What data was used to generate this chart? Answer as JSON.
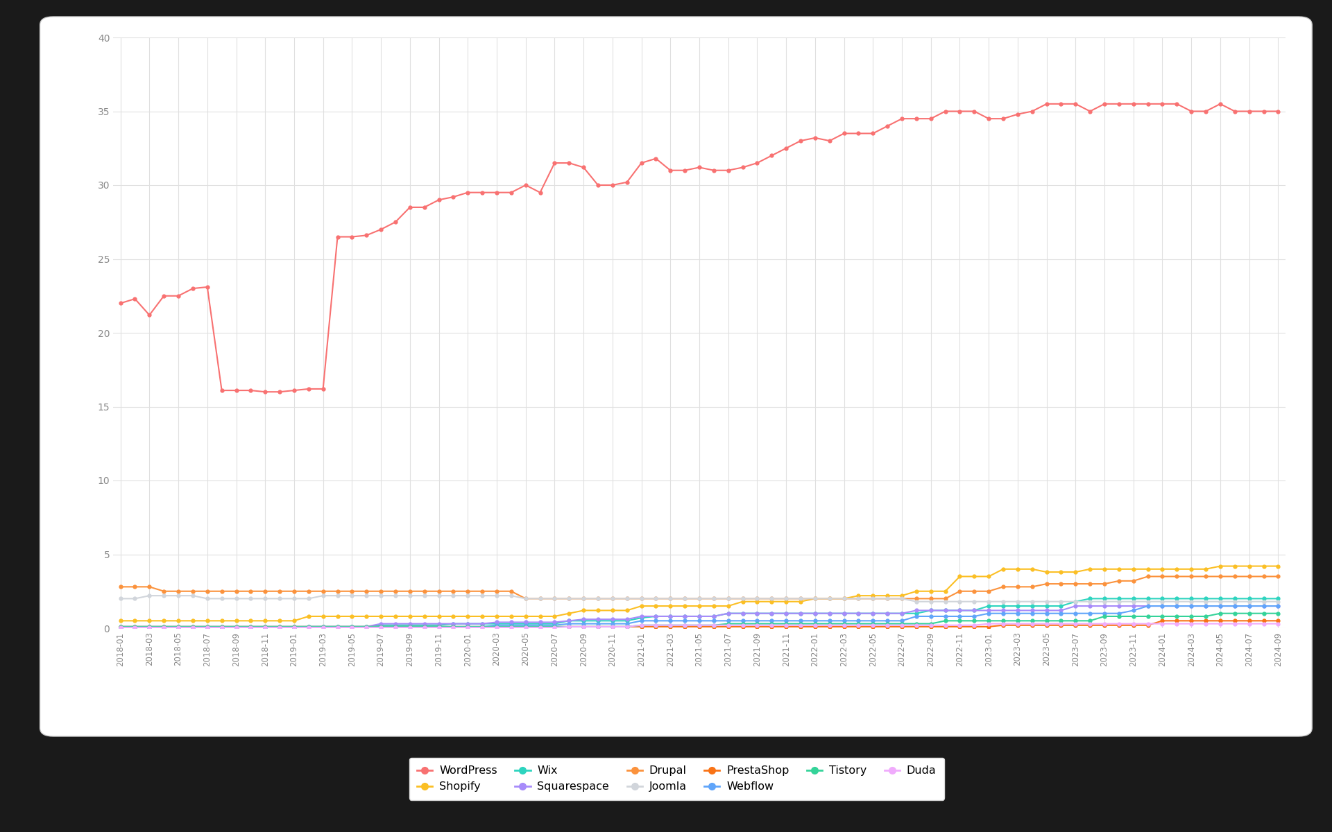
{
  "background_outer": "#1a1a1a",
  "background_card": "#ffffff",
  "background_chart": "#ffffff",
  "grid_color": "#e0e0e0",
  "ylim": [
    0,
    40
  ],
  "yticks": [
    0,
    5,
    10,
    15,
    20,
    25,
    30,
    35,
    40
  ],
  "tick_color": "#888888",
  "tick_fontsize": 10,
  "series": {
    "WordPress": {
      "color": "#f87171"
    },
    "Shopify": {
      "color": "#fbbf24"
    },
    "Wix": {
      "color": "#2dd4bf"
    },
    "Squarespace": {
      "color": "#a78bfa"
    },
    "Drupal": {
      "color": "#fb923c"
    },
    "Joomla": {
      "color": "#d1d5db"
    },
    "PrestaShop": {
      "color": "#f97316"
    },
    "Webflow": {
      "color": "#60a5fa"
    },
    "Tistory": {
      "color": "#34d399"
    },
    "Duda": {
      "color": "#f0abfc"
    }
  },
  "values": {
    "WordPress": [
      22.0,
      22.3,
      21.2,
      22.5,
      22.5,
      23.0,
      23.1,
      16.1,
      16.1,
      16.1,
      16.0,
      16.0,
      16.1,
      16.2,
      16.2,
      26.5,
      26.5,
      26.6,
      27.0,
      27.5,
      28.5,
      28.5,
      29.0,
      29.2,
      29.5,
      29.5,
      29.5,
      29.5,
      30.0,
      29.5,
      31.5,
      31.5,
      31.2,
      30.0,
      30.0,
      30.2,
      31.5,
      31.8,
      31.0,
      31.0,
      31.2,
      31.0,
      31.0,
      31.2,
      31.5,
      32.0,
      32.5,
      33.0,
      33.2,
      33.0,
      33.5,
      33.5,
      33.5,
      34.0,
      34.5,
      34.5,
      34.5,
      35.0,
      35.0,
      35.0,
      34.5,
      34.5,
      34.8,
      35.0,
      35.5,
      35.5,
      35.5,
      35.0,
      35.5,
      35.5,
      35.5,
      35.5,
      35.5,
      35.5,
      35.0,
      35.0,
      35.5,
      35.0
    ],
    "Shopify": [
      0.5,
      0.5,
      0.5,
      0.5,
      0.5,
      0.5,
      0.5,
      0.5,
      0.5,
      0.5,
      0.5,
      0.5,
      0.5,
      0.8,
      0.8,
      0.8,
      0.8,
      0.8,
      0.8,
      0.8,
      0.8,
      0.8,
      0.8,
      0.8,
      0.8,
      0.8,
      0.8,
      0.8,
      0.8,
      0.8,
      0.8,
      1.0,
      1.2,
      1.2,
      1.2,
      1.2,
      1.5,
      1.5,
      1.5,
      1.5,
      1.5,
      1.5,
      1.5,
      1.8,
      1.8,
      1.8,
      1.8,
      1.8,
      2.0,
      2.0,
      2.0,
      2.2,
      2.2,
      2.2,
      2.2,
      2.5,
      2.5,
      2.5,
      3.5,
      3.5,
      3.5,
      4.0,
      4.0,
      4.0,
      3.8,
      3.8,
      3.8,
      4.0,
      4.0,
      4.0,
      4.0,
      4.0,
      4.0,
      4.0,
      4.0,
      4.0,
      4.2,
      4.2
    ],
    "Wix": [
      0.1,
      0.1,
      0.1,
      0.1,
      0.1,
      0.1,
      0.1,
      0.1,
      0.1,
      0.1,
      0.1,
      0.1,
      0.1,
      0.1,
      0.1,
      0.1,
      0.1,
      0.1,
      0.2,
      0.2,
      0.2,
      0.2,
      0.2,
      0.3,
      0.3,
      0.3,
      0.3,
      0.3,
      0.3,
      0.3,
      0.3,
      0.5,
      0.5,
      0.5,
      0.5,
      0.5,
      0.7,
      0.8,
      0.8,
      0.8,
      0.8,
      0.8,
      1.0,
      1.0,
      1.0,
      1.0,
      1.0,
      1.0,
      1.0,
      1.0,
      1.0,
      1.0,
      1.0,
      1.0,
      1.0,
      1.0,
      1.2,
      1.2,
      1.2,
      1.2,
      1.5,
      1.5,
      1.5,
      1.5,
      1.5,
      1.5,
      1.8,
      2.0,
      2.0,
      2.0,
      2.0,
      2.0,
      2.0,
      2.0,
      2.0,
      2.0,
      2.0,
      2.0
    ],
    "Squarespace": [
      0.1,
      0.1,
      0.1,
      0.1,
      0.1,
      0.1,
      0.1,
      0.1,
      0.1,
      0.1,
      0.1,
      0.1,
      0.1,
      0.1,
      0.1,
      0.1,
      0.1,
      0.1,
      0.3,
      0.3,
      0.3,
      0.3,
      0.3,
      0.3,
      0.3,
      0.3,
      0.4,
      0.4,
      0.4,
      0.4,
      0.4,
      0.5,
      0.6,
      0.6,
      0.6,
      0.6,
      0.8,
      0.8,
      0.8,
      0.8,
      0.8,
      0.8,
      1.0,
      1.0,
      1.0,
      1.0,
      1.0,
      1.0,
      1.0,
      1.0,
      1.0,
      1.0,
      1.0,
      1.0,
      1.0,
      1.2,
      1.2,
      1.2,
      1.2,
      1.2,
      1.2,
      1.2,
      1.2,
      1.2,
      1.2,
      1.2,
      1.5,
      1.5,
      1.5,
      1.5,
      1.5,
      1.5,
      1.5,
      1.5,
      1.5,
      1.5,
      1.5,
      1.5
    ],
    "Drupal": [
      2.8,
      2.8,
      2.8,
      2.5,
      2.5,
      2.5,
      2.5,
      2.5,
      2.5,
      2.5,
      2.5,
      2.5,
      2.5,
      2.5,
      2.5,
      2.5,
      2.5,
      2.5,
      2.5,
      2.5,
      2.5,
      2.5,
      2.5,
      2.5,
      2.5,
      2.5,
      2.5,
      2.5,
      2.0,
      2.0,
      2.0,
      2.0,
      2.0,
      2.0,
      2.0,
      2.0,
      2.0,
      2.0,
      2.0,
      2.0,
      2.0,
      2.0,
      2.0,
      2.0,
      2.0,
      2.0,
      2.0,
      2.0,
      2.0,
      2.0,
      2.0,
      2.0,
      2.0,
      2.0,
      2.0,
      2.0,
      2.0,
      2.0,
      2.5,
      2.5,
      2.5,
      2.8,
      2.8,
      2.8,
      3.0,
      3.0,
      3.0,
      3.0,
      3.0,
      3.2,
      3.2,
      3.5,
      3.5,
      3.5,
      3.5,
      3.5,
      3.5,
      3.5
    ],
    "Joomla": [
      2.0,
      2.0,
      2.2,
      2.2,
      2.2,
      2.2,
      2.0,
      2.0,
      2.0,
      2.0,
      2.0,
      2.0,
      2.0,
      2.0,
      2.2,
      2.2,
      2.2,
      2.2,
      2.2,
      2.2,
      2.2,
      2.2,
      2.2,
      2.2,
      2.2,
      2.2,
      2.2,
      2.2,
      2.0,
      2.0,
      2.0,
      2.0,
      2.0,
      2.0,
      2.0,
      2.0,
      2.0,
      2.0,
      2.0,
      2.0,
      2.0,
      2.0,
      2.0,
      2.0,
      2.0,
      2.0,
      2.0,
      2.0,
      2.0,
      2.0,
      2.0,
      2.0,
      2.0,
      2.0,
      2.0,
      1.8,
      1.8,
      1.8,
      1.8,
      1.8,
      1.8,
      1.8,
      1.8,
      1.8,
      1.8,
      1.8,
      1.8,
      1.8,
      1.8,
      1.8,
      1.8,
      1.8,
      1.8,
      1.8,
      1.8,
      1.8,
      1.8,
      1.8
    ],
    "PrestaShop": [
      0.1,
      0.1,
      0.1,
      0.1,
      0.1,
      0.1,
      0.1,
      0.1,
      0.1,
      0.1,
      0.1,
      0.1,
      0.1,
      0.1,
      0.1,
      0.1,
      0.1,
      0.1,
      0.1,
      0.1,
      0.1,
      0.1,
      0.1,
      0.1,
      0.1,
      0.1,
      0.1,
      0.1,
      0.1,
      0.1,
      0.1,
      0.1,
      0.1,
      0.1,
      0.1,
      0.1,
      0.1,
      0.1,
      0.1,
      0.1,
      0.1,
      0.1,
      0.1,
      0.1,
      0.1,
      0.1,
      0.1,
      0.1,
      0.1,
      0.1,
      0.1,
      0.1,
      0.1,
      0.1,
      0.1,
      0.1,
      0.1,
      0.1,
      0.1,
      0.1,
      0.1,
      0.2,
      0.2,
      0.2,
      0.2,
      0.2,
      0.2,
      0.2,
      0.2,
      0.2,
      0.2,
      0.2,
      0.5,
      0.5,
      0.5,
      0.5,
      0.5,
      0.5
    ],
    "Webflow": [
      0.05,
      0.05,
      0.05,
      0.05,
      0.05,
      0.05,
      0.05,
      0.05,
      0.05,
      0.05,
      0.05,
      0.05,
      0.05,
      0.1,
      0.1,
      0.1,
      0.1,
      0.1,
      0.1,
      0.1,
      0.1,
      0.1,
      0.1,
      0.1,
      0.1,
      0.1,
      0.2,
      0.2,
      0.2,
      0.2,
      0.2,
      0.3,
      0.3,
      0.3,
      0.3,
      0.3,
      0.5,
      0.5,
      0.5,
      0.5,
      0.5,
      0.5,
      0.5,
      0.5,
      0.5,
      0.5,
      0.5,
      0.5,
      0.5,
      0.5,
      0.5,
      0.5,
      0.5,
      0.5,
      0.5,
      0.8,
      0.8,
      0.8,
      0.8,
      0.8,
      1.0,
      1.0,
      1.0,
      1.0,
      1.0,
      1.0,
      1.0,
      1.0,
      1.0,
      1.0,
      1.2,
      1.5,
      1.5,
      1.5,
      1.5,
      1.5,
      1.5,
      1.5
    ],
    "Tistory": [
      0.1,
      0.1,
      0.1,
      0.1,
      0.1,
      0.1,
      0.1,
      0.1,
      0.1,
      0.1,
      0.1,
      0.1,
      0.1,
      0.1,
      0.1,
      0.1,
      0.1,
      0.1,
      0.1,
      0.1,
      0.1,
      0.1,
      0.1,
      0.1,
      0.1,
      0.1,
      0.1,
      0.1,
      0.1,
      0.1,
      0.1,
      0.1,
      0.1,
      0.1,
      0.1,
      0.1,
      0.2,
      0.2,
      0.2,
      0.2,
      0.2,
      0.2,
      0.3,
      0.3,
      0.3,
      0.3,
      0.3,
      0.3,
      0.3,
      0.3,
      0.3,
      0.3,
      0.3,
      0.3,
      0.3,
      0.3,
      0.3,
      0.5,
      0.5,
      0.5,
      0.5,
      0.5,
      0.5,
      0.5,
      0.5,
      0.5,
      0.5,
      0.5,
      0.8,
      0.8,
      0.8,
      0.8,
      0.8,
      0.8,
      0.8,
      0.8,
      1.0,
      1.0
    ],
    "Duda": [
      0.05,
      0.05,
      0.05,
      0.05,
      0.05,
      0.05,
      0.05,
      0.05,
      0.05,
      0.05,
      0.05,
      0.05,
      0.05,
      0.05,
      0.05,
      0.05,
      0.05,
      0.05,
      0.05,
      0.05,
      0.05,
      0.05,
      0.05,
      0.05,
      0.05,
      0.05,
      0.05,
      0.05,
      0.05,
      0.05,
      0.05,
      0.1,
      0.1,
      0.1,
      0.1,
      0.1,
      0.2,
      0.2,
      0.2,
      0.2,
      0.2,
      0.2,
      0.2,
      0.2,
      0.2,
      0.2,
      0.2,
      0.2,
      0.2,
      0.2,
      0.2,
      0.2,
      0.2,
      0.2,
      0.2,
      0.2,
      0.2,
      0.2,
      0.2,
      0.2,
      0.3,
      0.3,
      0.3,
      0.3,
      0.3,
      0.3,
      0.3,
      0.3,
      0.3,
      0.3,
      0.3,
      0.3,
      0.3,
      0.3,
      0.3,
      0.3,
      0.3,
      0.3
    ]
  },
  "legend_order": [
    "WordPress",
    "Shopify",
    "Wix",
    "Squarespace",
    "Drupal",
    "Joomla",
    "PrestaShop",
    "Webflow",
    "Tistory",
    "Duda"
  ]
}
